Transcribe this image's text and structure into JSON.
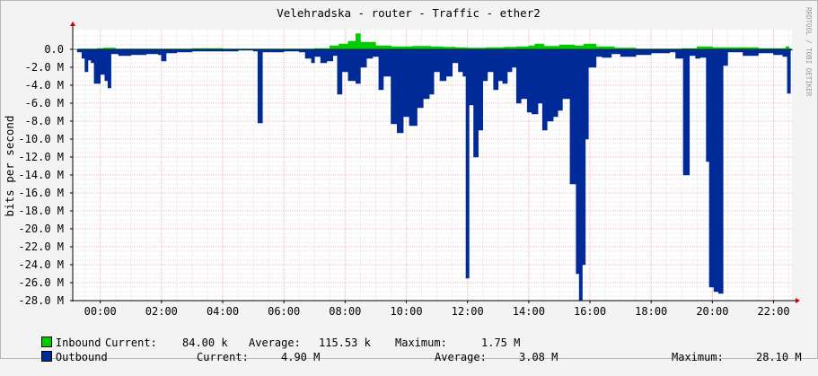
{
  "chart_data": {
    "type": "area",
    "title": "Velehradska - router - Traffic - ether2",
    "ylabel": "bits per second",
    "watermark": "RRDTOOL / TOBI OETIKER",
    "x_range_hours": [
      23.1,
      46.6
    ],
    "ylim": [
      -28000000,
      1500000
    ],
    "yticks": [
      {
        "v": 0,
        "label": "0.0"
      },
      {
        "v": -2000000,
        "label": "-2.0 M"
      },
      {
        "v": -4000000,
        "label": "-4.0 M"
      },
      {
        "v": -6000000,
        "label": "-6.0 M"
      },
      {
        "v": -8000000,
        "label": "-8.0 M"
      },
      {
        "v": -10000000,
        "label": "-10.0 M"
      },
      {
        "v": -12000000,
        "label": "-12.0 M"
      },
      {
        "v": -14000000,
        "label": "-14.0 M"
      },
      {
        "v": -16000000,
        "label": "-16.0 M"
      },
      {
        "v": -18000000,
        "label": "-18.0 M"
      },
      {
        "v": -20000000,
        "label": "-20.0 M"
      },
      {
        "v": -22000000,
        "label": "-22.0 M"
      },
      {
        "v": -24000000,
        "label": "-24.0 M"
      },
      {
        "v": -26000000,
        "label": "-26.0 M"
      },
      {
        "v": -28000000,
        "label": "-28.0 M"
      }
    ],
    "xticks": [
      {
        "h": 24,
        "label": "00:00"
      },
      {
        "h": 26,
        "label": "02:00"
      },
      {
        "h": 28,
        "label": "04:00"
      },
      {
        "h": 30,
        "label": "06:00"
      },
      {
        "h": 32,
        "label": "08:00"
      },
      {
        "h": 34,
        "label": "10:00"
      },
      {
        "h": 36,
        "label": "12:00"
      },
      {
        "h": 38,
        "label": "14:00"
      },
      {
        "h": 40,
        "label": "16:00"
      },
      {
        "h": 42,
        "label": "18:00"
      },
      {
        "h": 44,
        "label": "20:00"
      },
      {
        "h": 46,
        "label": "22:00"
      }
    ],
    "series": [
      {
        "name": "Inbound",
        "color": "#00cc00",
        "points": [
          [
            23.3,
            0.05
          ],
          [
            23.9,
            0.1
          ],
          [
            24.1,
            0.15
          ],
          [
            24.5,
            0.05
          ],
          [
            25.0,
            0.05
          ],
          [
            27.0,
            0.1
          ],
          [
            28.0,
            0.05
          ],
          [
            31.0,
            0.1
          ],
          [
            31.5,
            0.4
          ],
          [
            31.8,
            0.6
          ],
          [
            32.1,
            0.9
          ],
          [
            32.35,
            1.75
          ],
          [
            32.5,
            0.8
          ],
          [
            33.0,
            0.4
          ],
          [
            33.5,
            0.3
          ],
          [
            34.2,
            0.35
          ],
          [
            34.8,
            0.3
          ],
          [
            35.2,
            0.25
          ],
          [
            35.6,
            0.2
          ],
          [
            36.0,
            0.15
          ],
          [
            36.6,
            0.2
          ],
          [
            37.2,
            0.25
          ],
          [
            37.6,
            0.3
          ],
          [
            38.0,
            0.4
          ],
          [
            38.2,
            0.6
          ],
          [
            38.5,
            0.35
          ],
          [
            39.0,
            0.5
          ],
          [
            39.5,
            0.4
          ],
          [
            39.8,
            0.6
          ],
          [
            40.2,
            0.3
          ],
          [
            40.8,
            0.15
          ],
          [
            41.5,
            0.05
          ],
          [
            43.0,
            0.1
          ],
          [
            43.5,
            0.3
          ],
          [
            44.0,
            0.2
          ],
          [
            44.5,
            0.2
          ],
          [
            45.5,
            0.1
          ],
          [
            46.4,
            0.3
          ],
          [
            46.5,
            0.08
          ]
        ]
      },
      {
        "name": "Outbound",
        "color": "#002a97",
        "points": [
          [
            23.25,
            -0.3
          ],
          [
            23.4,
            -1.0
          ],
          [
            23.5,
            -2.5
          ],
          [
            23.6,
            -1.2
          ],
          [
            23.7,
            -1.5
          ],
          [
            23.8,
            -3.8
          ],
          [
            24.0,
            -2.8
          ],
          [
            24.15,
            -3.5
          ],
          [
            24.25,
            -4.3
          ],
          [
            24.35,
            -0.5
          ],
          [
            24.6,
            -0.7
          ],
          [
            25.0,
            -0.6
          ],
          [
            25.5,
            -0.5
          ],
          [
            25.9,
            -0.6
          ],
          [
            26.0,
            -1.3
          ],
          [
            26.15,
            -0.4
          ],
          [
            26.5,
            -0.3
          ],
          [
            27.0,
            -0.2
          ],
          [
            28.5,
            -0.1
          ],
          [
            29.0,
            -0.2
          ],
          [
            29.15,
            -8.2
          ],
          [
            29.3,
            -0.3
          ],
          [
            30.0,
            -0.2
          ],
          [
            30.5,
            -0.3
          ],
          [
            30.7,
            -1.0
          ],
          [
            30.9,
            -1.5
          ],
          [
            31.0,
            -0.8
          ],
          [
            31.2,
            -1.5
          ],
          [
            31.4,
            -1.3
          ],
          [
            31.6,
            -0.7
          ],
          [
            31.75,
            -5.0
          ],
          [
            31.9,
            -2.5
          ],
          [
            32.1,
            -3.5
          ],
          [
            32.35,
            -3.8
          ],
          [
            32.5,
            -2.0
          ],
          [
            32.7,
            -1.0
          ],
          [
            32.9,
            -0.8
          ],
          [
            33.1,
            -4.5
          ],
          [
            33.25,
            -3.0
          ],
          [
            33.5,
            -8.3
          ],
          [
            33.7,
            -9.3
          ],
          [
            33.9,
            -7.5
          ],
          [
            34.1,
            -8.5
          ],
          [
            34.35,
            -6.5
          ],
          [
            34.55,
            -5.5
          ],
          [
            34.75,
            -5.0
          ],
          [
            34.9,
            -2.5
          ],
          [
            35.1,
            -3.5
          ],
          [
            35.3,
            -3.0
          ],
          [
            35.5,
            -1.5
          ],
          [
            35.7,
            -2.5
          ],
          [
            35.85,
            -3.0
          ],
          [
            35.95,
            -25.5
          ],
          [
            36.05,
            -6.2
          ],
          [
            36.2,
            -12.0
          ],
          [
            36.35,
            -9.0
          ],
          [
            36.5,
            -3.5
          ],
          [
            36.65,
            -2.5
          ],
          [
            36.85,
            -4.5
          ],
          [
            37.0,
            -3.5
          ],
          [
            37.15,
            -3.8
          ],
          [
            37.3,
            -2.5
          ],
          [
            37.45,
            -2.0
          ],
          [
            37.6,
            -6.0
          ],
          [
            37.75,
            -5.5
          ],
          [
            37.95,
            -7.0
          ],
          [
            38.1,
            -7.2
          ],
          [
            38.3,
            -6.0
          ],
          [
            38.45,
            -9.0
          ],
          [
            38.6,
            -8.0
          ],
          [
            38.8,
            -7.5
          ],
          [
            38.95,
            -6.8
          ],
          [
            39.1,
            -5.5
          ],
          [
            39.35,
            -15.0
          ],
          [
            39.55,
            -25.0
          ],
          [
            39.65,
            -28.0
          ],
          [
            39.75,
            -24.0
          ],
          [
            39.85,
            -10.0
          ],
          [
            39.95,
            -2.0
          ],
          [
            40.2,
            -0.8
          ],
          [
            40.4,
            -0.9
          ],
          [
            40.7,
            -0.5
          ],
          [
            41.0,
            -0.8
          ],
          [
            41.5,
            -0.6
          ],
          [
            42.0,
            -0.4
          ],
          [
            42.6,
            -0.3
          ],
          [
            42.8,
            -1.0
          ],
          [
            43.05,
            -14.0
          ],
          [
            43.25,
            -0.7
          ],
          [
            43.45,
            -1.0
          ],
          [
            43.6,
            -0.9
          ],
          [
            43.8,
            -12.5
          ],
          [
            43.9,
            -26.5
          ],
          [
            44.05,
            -27.0
          ],
          [
            44.2,
            -27.2
          ],
          [
            44.35,
            -1.8
          ],
          [
            44.5,
            -0.3
          ],
          [
            45.0,
            -0.7
          ],
          [
            45.5,
            -0.4
          ],
          [
            46.0,
            -0.6
          ],
          [
            46.3,
            -0.8
          ],
          [
            46.45,
            -4.9
          ],
          [
            46.55,
            -0.1
          ]
        ]
      }
    ]
  },
  "legend": {
    "inbound": {
      "name": "Inbound",
      "current_label": "Current:",
      "current": "84.00 k",
      "average_label": "Average:",
      "average": "115.53 k",
      "maximum_label": "Maximum:",
      "maximum": "1.75 M"
    },
    "outbound": {
      "name": "Outbound",
      "current_label": "Current:",
      "current": "4.90 M",
      "average_label": "Average:",
      "average": "3.08 M",
      "maximum_label": "Maximum:",
      "maximum": "28.10 M"
    }
  }
}
